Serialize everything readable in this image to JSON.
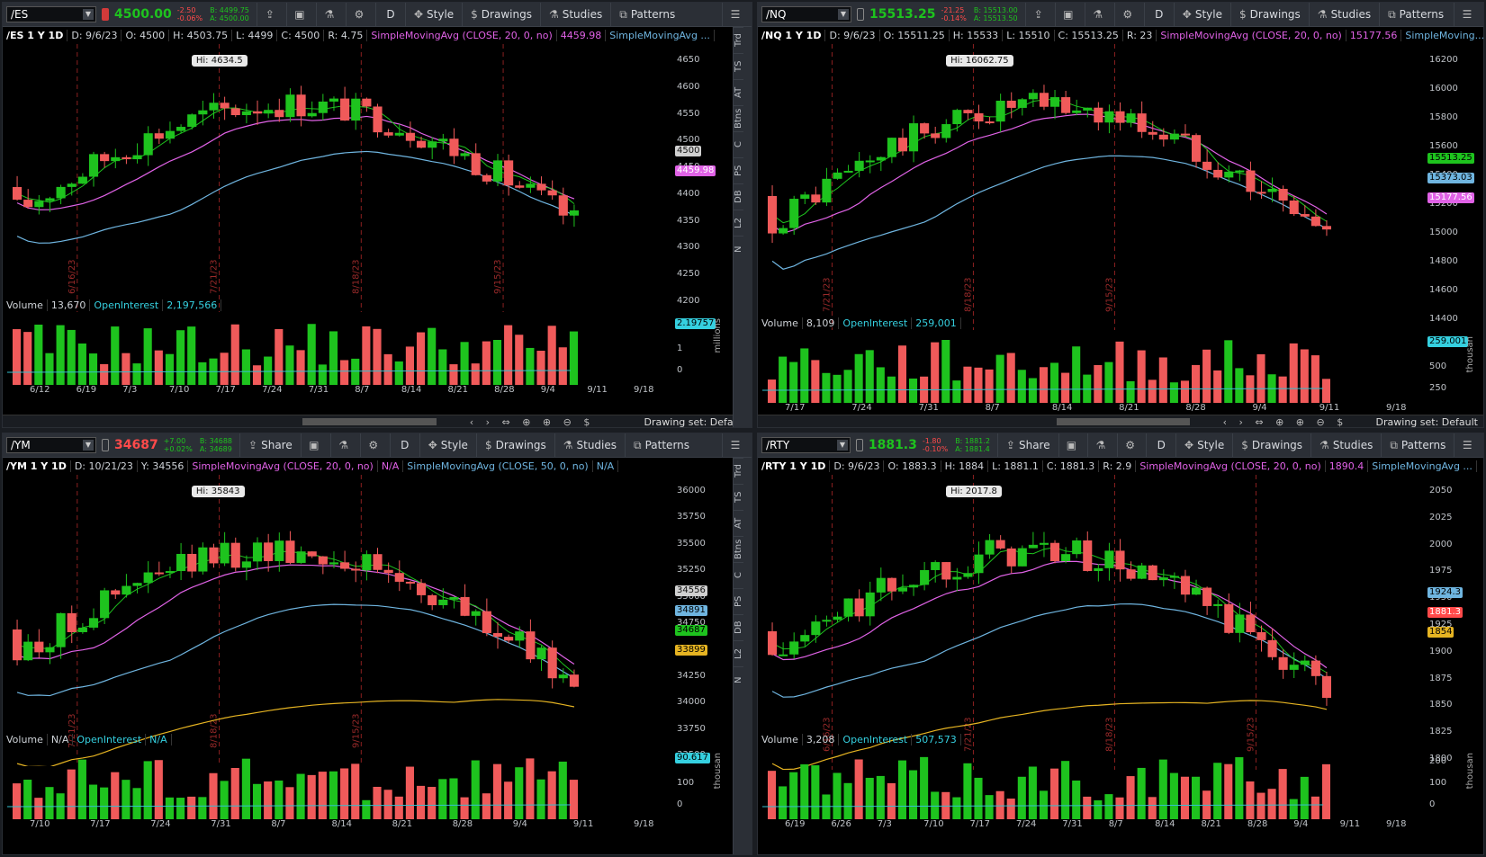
{
  "panes": [
    {
      "id": "es",
      "symbol": "/ES",
      "last": "4500.00",
      "dir": "up",
      "dir_color": "#1ec31e",
      "chg_pts": "-2.50",
      "chg_pct": "-0.06%",
      "bid": "B: 4499.75",
      "ask": "A: 4500.00",
      "legend": {
        "title": "/ES 1 Y 1D",
        "d": "D: 9/6/23",
        "o": "O: 4500",
        "h": "H: 4503.75",
        "l": "L: 4499",
        "c": "C: 4500",
        "r": "R: 4.75",
        "sma1": "SimpleMovingAvg (CLOSE, 20, 0, no)",
        "sma1_val": "4459.98",
        "sma2": "SimpleMovingAvg ...",
        "sma2_val": ""
      },
      "hi_label": "Hi: 4634.5",
      "price_ticks": [
        "4650",
        "4600",
        "4550",
        "4500",
        "4450",
        "4400",
        "4350",
        "4300",
        "4250",
        "4200"
      ],
      "price_tags": [
        {
          "t": "4500",
          "bg": "#d0d0d0",
          "fg": "#111"
        },
        {
          "t": "4459.98",
          "bg": "#e062e6",
          "fg": "#fff"
        }
      ],
      "vlines": [
        "6/16/23",
        "7/21/23",
        "8/18/23",
        "9/15/23"
      ],
      "vol": {
        "label": "Volume",
        "val": "13,670",
        "oi": "OpenInterest",
        "oi_val": "2,197,566",
        "tag": "2.19757",
        "ticks": [
          "2",
          "1",
          "0"
        ],
        "units": "millions"
      },
      "date_ticks": [
        "6/12",
        "6/19",
        "7/3",
        "7/10",
        "7/17",
        "7/24",
        "7/31",
        "8/7",
        "8/14",
        "8/21",
        "8/28",
        "9/4",
        "9/11",
        "9/18"
      ],
      "drawing_set": "Drawing set: Default"
    },
    {
      "id": "nq",
      "symbol": "/NQ",
      "last": "15513.25",
      "dir": "up",
      "dir_color": "#1ec31e",
      "chg_pts": "-21.25",
      "chg_pct": "-0.14%",
      "bid": "B: 15513.00",
      "ask": "A: 15513.50",
      "legend": {
        "title": "/NQ 1 Y 1D",
        "d": "D: 9/6/23",
        "o": "O: 15511.25",
        "h": "H: 15533",
        "l": "L: 15510",
        "c": "C: 15513.25",
        "r": "R: 23",
        "sma1": "SimpleMovingAvg (CLOSE, 20, 0, no)",
        "sma1_val": "15177.56",
        "sma2": "SimpleMoving...",
        "sma2_val": ""
      },
      "hi_label": "Hi: 16062.75",
      "price_ticks": [
        "16200",
        "16000",
        "15800",
        "15600",
        "15400",
        "15200",
        "15000",
        "14800",
        "14600",
        "14400"
      ],
      "price_tags": [
        {
          "t": "15513.25",
          "bg": "#1ec31e",
          "fg": "#000"
        },
        {
          "t": "15373.03",
          "bg": "#6fb5e0",
          "fg": "#000"
        },
        {
          "t": "15177.56",
          "bg": "#e062e6",
          "fg": "#fff"
        }
      ],
      "vlines": [
        "7/21/23",
        "8/18/23",
        "9/15/23"
      ],
      "vol": {
        "label": "Volume",
        "val": "8,109",
        "oi": "OpenInterest",
        "oi_val": "259,001",
        "tag": "259.001",
        "ticks": [
          "750",
          "500",
          "250"
        ],
        "units": "thousan"
      },
      "date_ticks": [
        "7/17",
        "7/24",
        "7/31",
        "8/7",
        "8/14",
        "8/21",
        "8/28",
        "9/4",
        "9/11",
        "9/18"
      ],
      "drawing_set": "Drawing set: Default"
    },
    {
      "id": "ym",
      "symbol": "/YM",
      "last": "34687",
      "dir": "dn",
      "dir_color": "#ff4a4a",
      "chg_pts": "+7.00",
      "chg_pct": "+0.02%",
      "bid": "B: 34688",
      "ask": "A: 34689",
      "legend": {
        "title": "/YM 1 Y 1D",
        "d": "D: 10/21/23",
        "o": "Y: 34556",
        "h": "",
        "l": "",
        "c": "",
        "r": "",
        "sma1": "SimpleMovingAvg (CLOSE, 20, 0, no)",
        "sma1_val": "N/A",
        "sma2": "SimpleMovingAvg (CLOSE, 50, 0, no)",
        "sma2_val": "N/A"
      },
      "hi_label": "Hi: 35843",
      "price_ticks": [
        "36000",
        "35750",
        "35500",
        "35250",
        "35000",
        "34750",
        "34500",
        "34250",
        "34000",
        "33750",
        "33500"
      ],
      "price_tags": [
        {
          "t": "34556",
          "bg": "#d0d0d0",
          "fg": "#111"
        },
        {
          "t": "34891",
          "bg": "#6fb5e0",
          "fg": "#000"
        },
        {
          "t": "34687",
          "bg": "#1ec31e",
          "fg": "#000"
        },
        {
          "t": "33899",
          "bg": "#e6b422",
          "fg": "#000"
        }
      ],
      "vlines": [
        "7/21/23",
        "8/18/23",
        "9/15/23"
      ],
      "vol": {
        "label": "Volume",
        "val": "N/A",
        "oi": "OpenInterest",
        "oi_val": "N/A",
        "tag": "90.617",
        "ticks": [
          "200",
          "100",
          "0"
        ],
        "units": "thousan"
      },
      "date_ticks": [
        "7/10",
        "7/17",
        "7/24",
        "7/31",
        "8/7",
        "8/14",
        "8/21",
        "8/28",
        "9/4",
        "9/11",
        "9/18"
      ],
      "drawing_set": ""
    },
    {
      "id": "rty",
      "symbol": "/RTY",
      "last": "1881.3",
      "dir": "up",
      "dir_color": "#1ec31e",
      "chg_pts": "-1.80",
      "chg_pct": "-0.10%",
      "bid": "B: 1881.2",
      "ask": "A: 1881.4",
      "legend": {
        "title": "/RTY 1 Y 1D",
        "d": "D: 9/6/23",
        "o": "O: 1883.3",
        "h": "H: 1884",
        "l": "L: 1881.1",
        "c": "C: 1881.3",
        "r": "R: 2.9",
        "sma1": "SimpleMovingAvg (CLOSE, 20, 0, no)",
        "sma1_val": "1890.4",
        "sma2": "SimpleMovingAvg ...",
        "sma2_val": ""
      },
      "hi_label": "Hi: 2017.8",
      "price_ticks": [
        "2050",
        "2025",
        "2000",
        "1975",
        "1950",
        "1925",
        "1900",
        "1875",
        "1850",
        "1825",
        "1800"
      ],
      "price_tags": [
        {
          "t": "1924.3",
          "bg": "#6fb5e0",
          "fg": "#000"
        },
        {
          "t": "1881.3",
          "bg": "#ff4a4a",
          "fg": "#fff"
        },
        {
          "t": "1854",
          "bg": "#e6b422",
          "fg": "#000"
        }
      ],
      "vlines": [
        "6/16/23",
        "7/21/23",
        "8/18/23",
        "9/15/23"
      ],
      "vol": {
        "label": "Volume",
        "val": "3,208",
        "oi": "OpenInterest",
        "oi_val": "507,573",
        "tag": "",
        "ticks": [
          "200",
          "100",
          "0"
        ],
        "units": "thousan"
      },
      "date_ticks": [
        "6/19",
        "6/26",
        "7/3",
        "7/10",
        "7/17",
        "7/24",
        "7/31",
        "8/7",
        "8/14",
        "8/21",
        "8/28",
        "9/4",
        "9/11",
        "9/18"
      ],
      "drawing_set": ""
    }
  ],
  "toolbar": {
    "share": "Share",
    "style": "Style",
    "drawings": "Drawings",
    "studies": "Studies",
    "patterns": "Patterns",
    "aggregation": "D"
  },
  "sidebar_items": [
    "Trd",
    "TS",
    "AT",
    "Btns",
    "C",
    "PS",
    "DB",
    "L2",
    "N"
  ],
  "icons": {
    "share": "share-icon",
    "grid": "grid-icon",
    "flask": "flask-icon",
    "gear": "gear-icon",
    "menu": "menu-icon",
    "style": "style-icon",
    "drawings": "drawings-icon",
    "studies": "studies-icon",
    "patterns": "patterns-icon",
    "lock": "lock-icon"
  }
}
